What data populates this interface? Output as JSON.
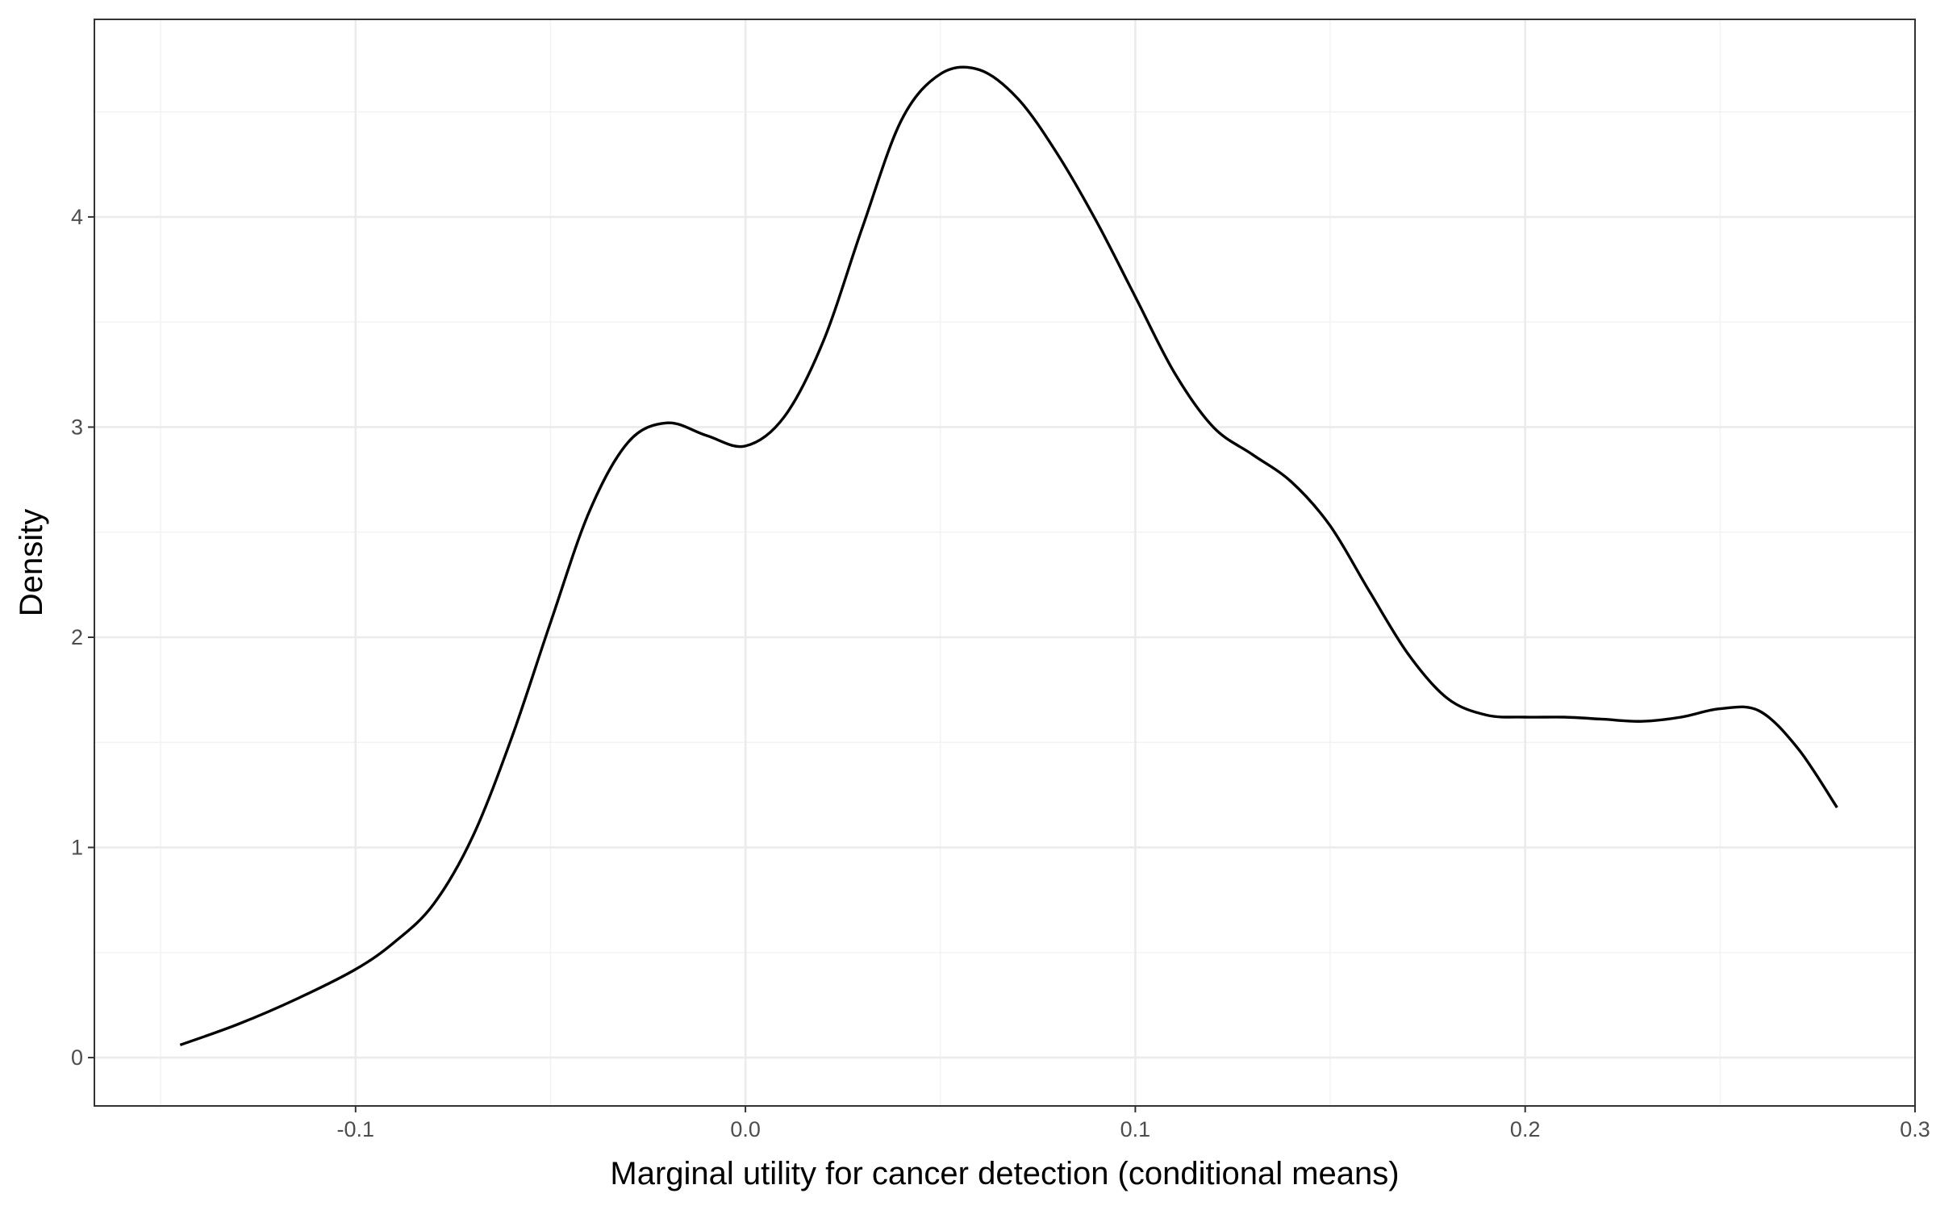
{
  "chart_data": {
    "type": "line",
    "title": "",
    "xlabel": "Marginal utility for cancer detection (conditional means)",
    "ylabel": "Density",
    "xlim": [
      -0.167,
      0.3
    ],
    "ylim": [
      -0.23,
      4.94
    ],
    "x_ticks": [
      -0.1,
      0.0,
      0.1,
      0.2,
      0.3
    ],
    "x_tick_labels": [
      "-0.1",
      "0.0",
      "0.1",
      "0.2",
      "0.3"
    ],
    "y_ticks": [
      0,
      1,
      2,
      3,
      4
    ],
    "y_tick_labels": [
      "0",
      "1",
      "2",
      "3",
      "4"
    ],
    "grid": true,
    "legend": "none",
    "series": [
      {
        "color": "#000000",
        "x": [
          -0.145,
          -0.13,
          -0.115,
          -0.1,
          -0.09,
          -0.08,
          -0.07,
          -0.06,
          -0.05,
          -0.04,
          -0.03,
          -0.02,
          -0.01,
          0.0,
          0.01,
          0.02,
          0.03,
          0.04,
          0.05,
          0.06,
          0.07,
          0.08,
          0.09,
          0.1,
          0.11,
          0.12,
          0.13,
          0.14,
          0.15,
          0.16,
          0.17,
          0.18,
          0.19,
          0.2,
          0.21,
          0.22,
          0.23,
          0.24,
          0.25,
          0.26,
          0.27,
          0.28
        ],
        "y": [
          0.06,
          0.16,
          0.28,
          0.42,
          0.55,
          0.73,
          1.05,
          1.52,
          2.07,
          2.6,
          2.93,
          3.02,
          2.96,
          2.91,
          3.05,
          3.41,
          3.95,
          4.46,
          4.68,
          4.7,
          4.56,
          4.3,
          3.98,
          3.62,
          3.26,
          3.0,
          2.87,
          2.74,
          2.53,
          2.22,
          1.92,
          1.71,
          1.63,
          1.62,
          1.62,
          1.61,
          1.6,
          1.62,
          1.66,
          1.65,
          1.47,
          1.19
        ]
      }
    ]
  }
}
